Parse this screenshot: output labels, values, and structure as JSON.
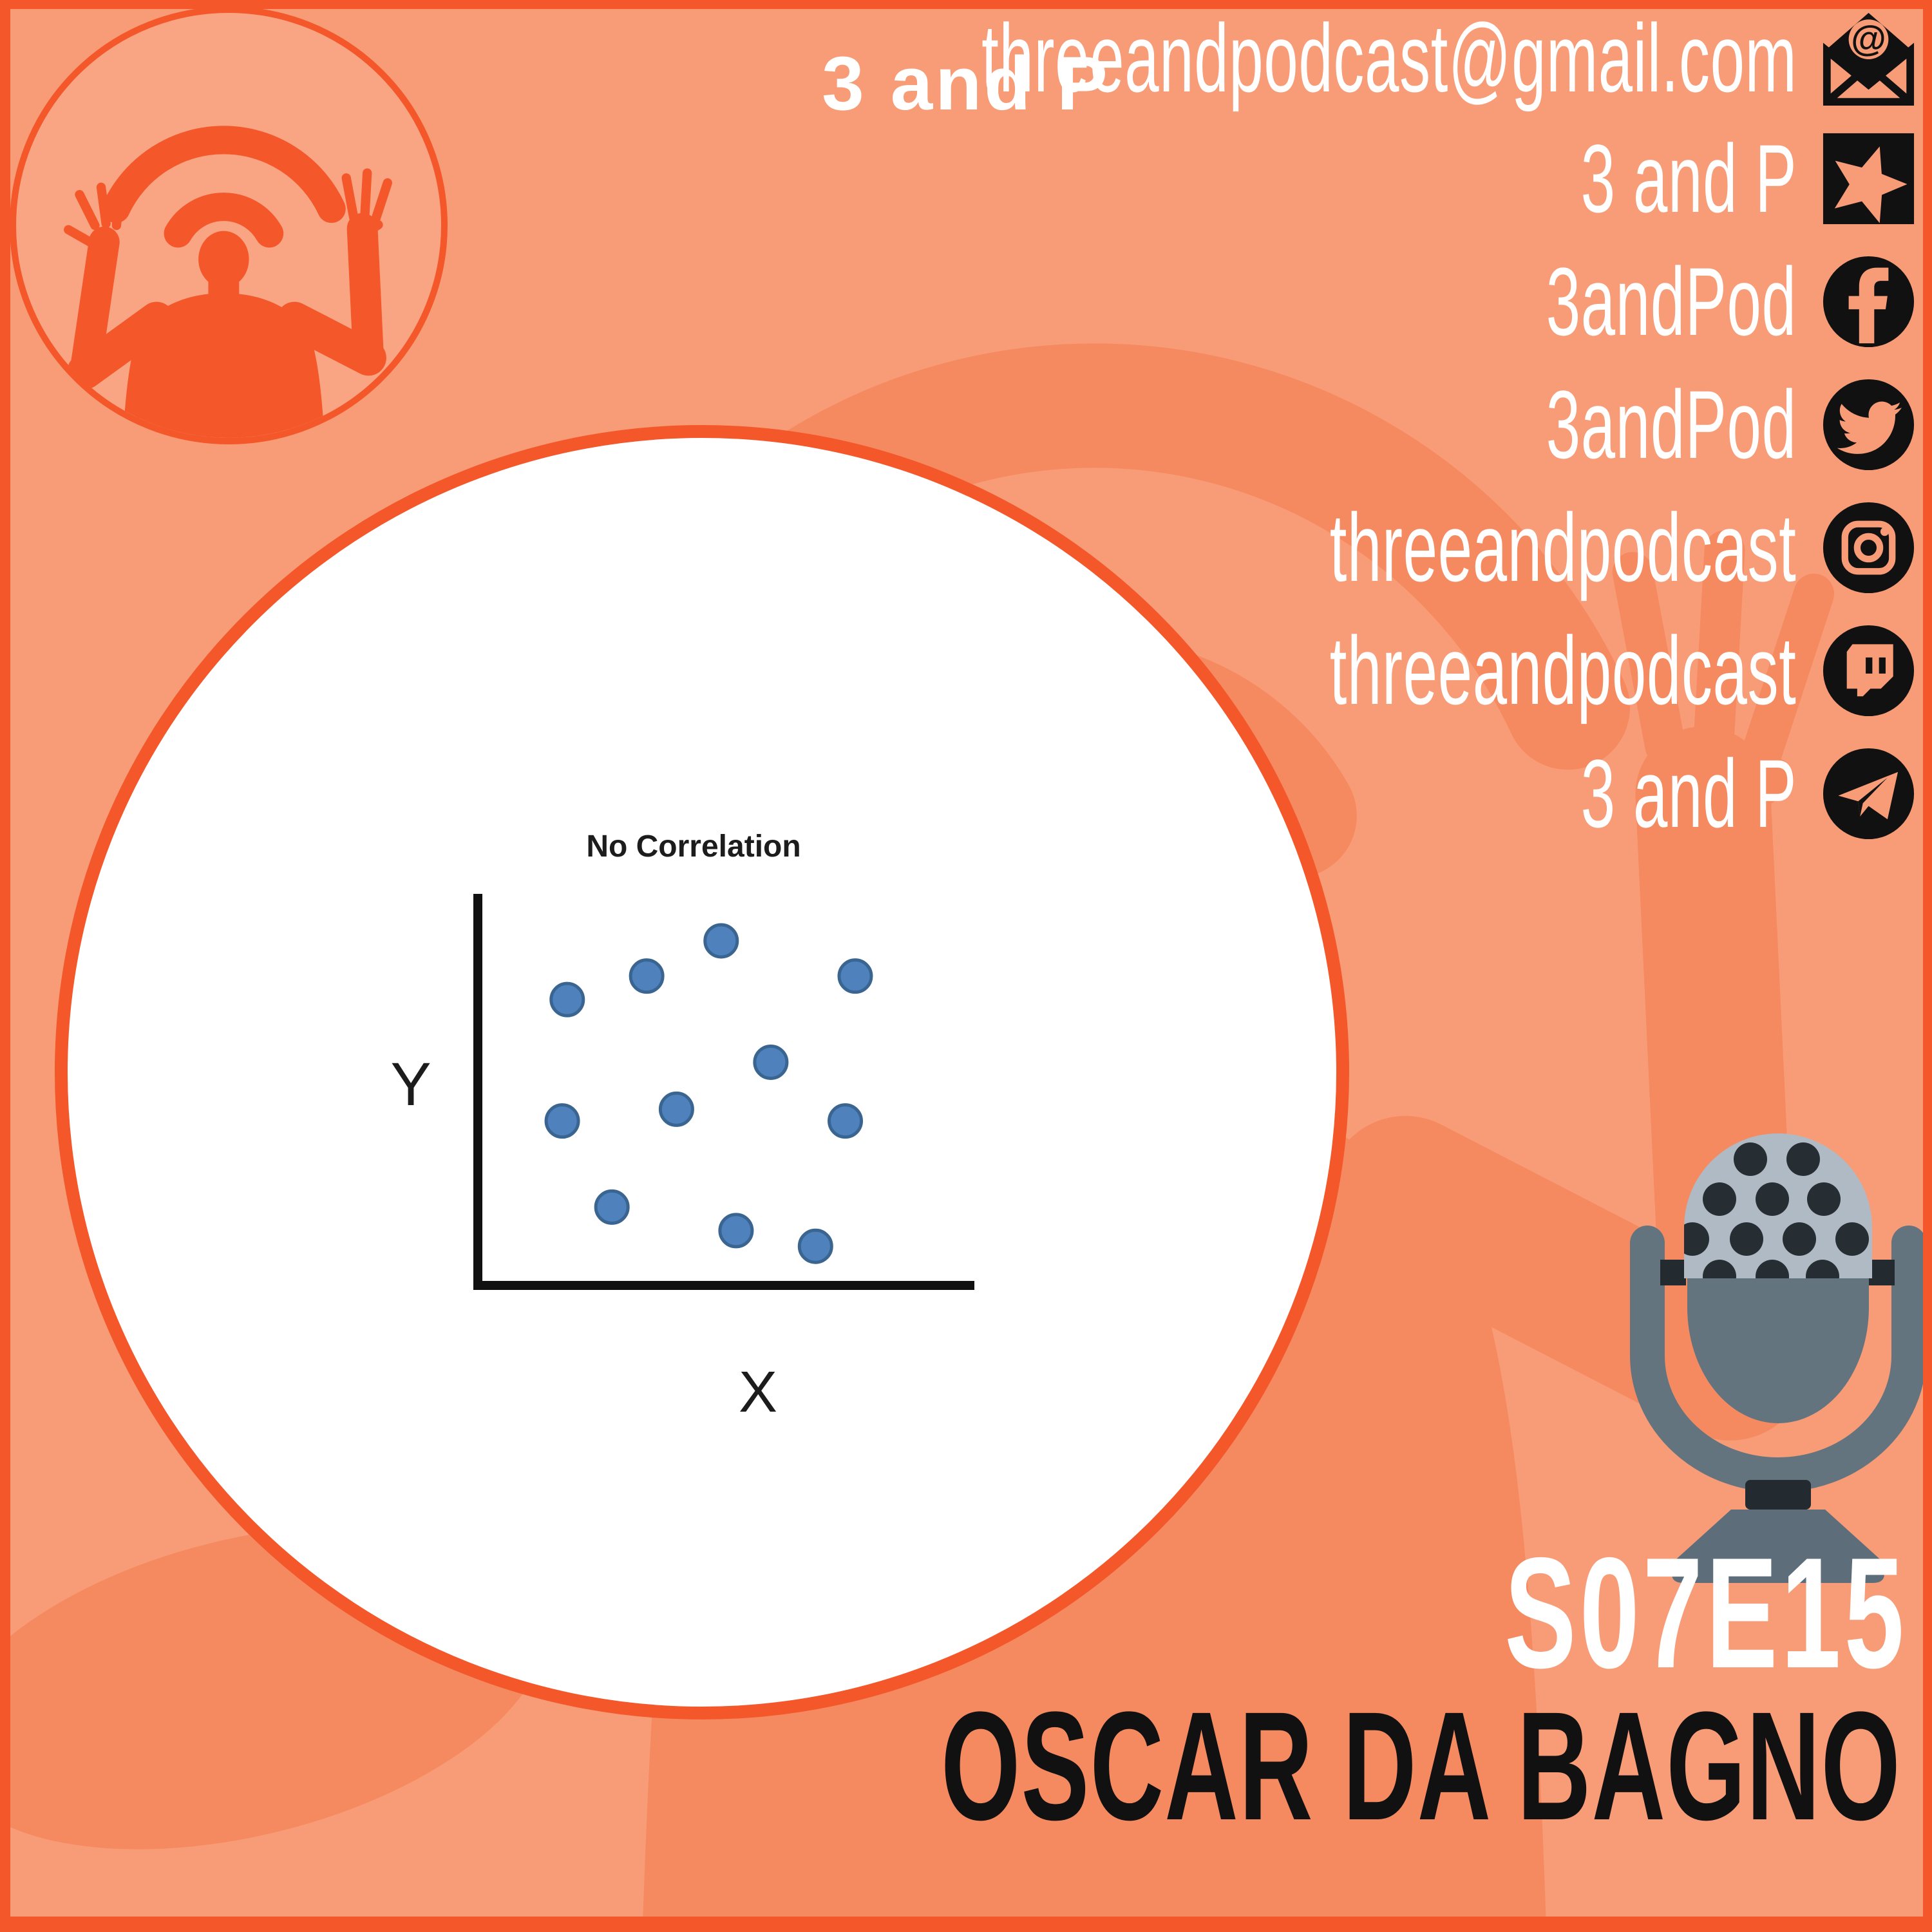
{
  "logo": {
    "text": "3 and P"
  },
  "contacts": [
    {
      "label": "threeandpodcast@gmail.com",
      "icon": "email-icon"
    },
    {
      "label": "3 and P",
      "icon": "star-icon"
    },
    {
      "label": "3andPod",
      "icon": "facebook-icon"
    },
    {
      "label": "3andPod",
      "icon": "twitter-icon"
    },
    {
      "label": "threeandpodcast",
      "icon": "instagram-icon"
    },
    {
      "label": "threeandpodcast",
      "icon": "twitch-icon"
    },
    {
      "label": "3 and P",
      "icon": "telegram-icon"
    }
  ],
  "episode": {
    "code": "S07E15",
    "title": "OSCAR DA BAGNO"
  },
  "chart_data": {
    "type": "scatter",
    "title": "No Correlation",
    "xlabel": "X",
    "ylabel": "Y",
    "xlim": [
      0,
      10
    ],
    "ylim": [
      0,
      10
    ],
    "grid": false,
    "tick_labels": "none",
    "marker_color": "#4f81bd",
    "points": [
      {
        "x": 4.9,
        "y": 8.8
      },
      {
        "x": 3.4,
        "y": 7.9
      },
      {
        "x": 1.8,
        "y": 7.3
      },
      {
        "x": 7.6,
        "y": 7.9
      },
      {
        "x": 5.9,
        "y": 5.7
      },
      {
        "x": 4.0,
        "y": 4.5
      },
      {
        "x": 1.7,
        "y": 4.2
      },
      {
        "x": 7.4,
        "y": 4.2
      },
      {
        "x": 2.7,
        "y": 2.0
      },
      {
        "x": 5.2,
        "y": 1.4
      },
      {
        "x": 6.8,
        "y": 1.0
      }
    ]
  },
  "colors": {
    "background": "#f89c77",
    "silhouette": "#f58a61",
    "accent_orange": "#f4572a",
    "logo_fill": "#f9a483",
    "icon_black": "#111111",
    "text_white": "#ffffff",
    "text_black": "#111111",
    "scatter_dot": "#4f81bd",
    "mic_grille": "#b0bac4",
    "mic_body": "#63747f",
    "mic_dark": "#232a30",
    "mic_base": "#5d6e7a"
  }
}
